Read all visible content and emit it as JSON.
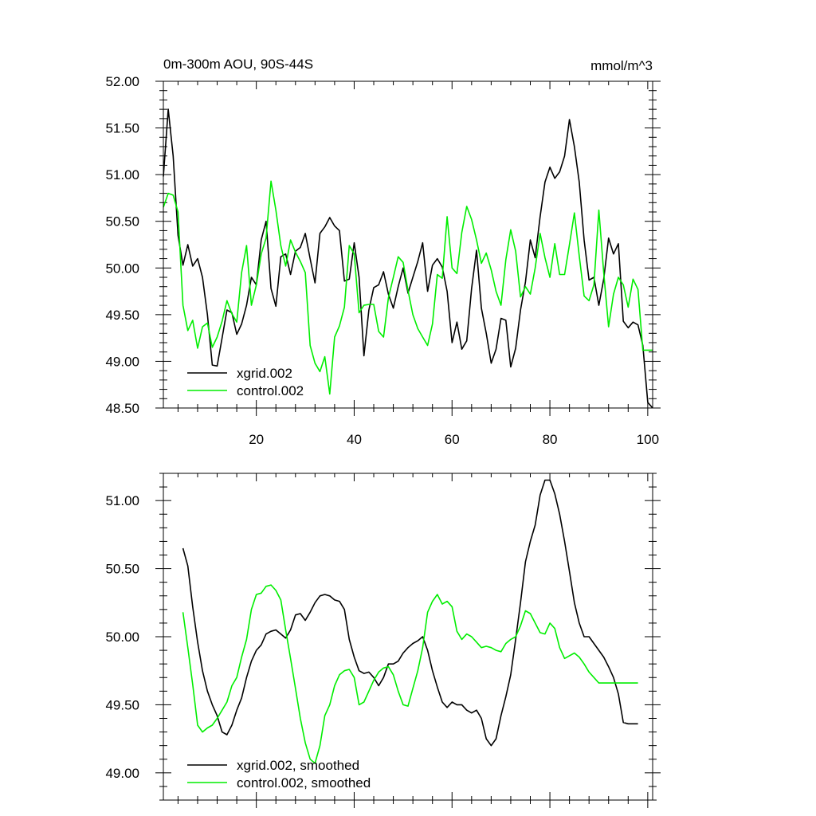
{
  "chart_data": [
    {
      "type": "line",
      "title": "0m-300m AOU, 90S-44S",
      "units_label": "mmol/m^3",
      "xlim": [
        1,
        101
      ],
      "ylim": [
        48.5,
        52.0
      ],
      "x_ticks": [
        20,
        40,
        60,
        80,
        100
      ],
      "x_tick_labels": [
        "20",
        "40",
        "60",
        "80",
        "100"
      ],
      "y_ticks": [
        48.5,
        49.0,
        49.5,
        50.0,
        50.5,
        51.0,
        51.5,
        52.0
      ],
      "y_tick_labels": [
        "48.50",
        "49.00",
        "49.50",
        "50.00",
        "50.50",
        "51.00",
        "51.50",
        "52.00"
      ],
      "legend_placement": "bottom-left",
      "series": [
        {
          "name": "xgrid.002",
          "color": "#000000",
          "x": [
            1,
            2,
            3,
            4,
            5,
            6,
            7,
            8,
            9,
            10,
            11,
            12,
            13,
            14,
            15,
            16,
            17,
            18,
            19,
            20,
            21,
            22,
            23,
            24,
            25,
            26,
            27,
            28,
            29,
            30,
            31,
            32,
            33,
            34,
            35,
            36,
            37,
            38,
            39,
            40,
            41,
            42,
            43,
            44,
            45,
            46,
            47,
            48,
            49,
            50,
            51,
            52,
            53,
            54,
            55,
            56,
            57,
            58,
            59,
            60,
            61,
            62,
            63,
            64,
            65,
            66,
            67,
            68,
            69,
            70,
            71,
            72,
            73,
            74,
            75,
            76,
            77,
            78,
            79,
            80,
            81,
            82,
            83,
            84,
            85,
            86,
            87,
            88,
            89,
            90,
            91,
            92,
            93,
            94,
            95,
            96,
            97,
            98,
            99,
            100,
            101
          ],
          "y": [
            50.98,
            51.7,
            51.2,
            50.35,
            50.03,
            50.25,
            50.02,
            50.1,
            49.9,
            49.5,
            48.96,
            48.95,
            49.25,
            49.55,
            49.52,
            49.29,
            49.4,
            49.6,
            49.9,
            49.82,
            50.3,
            50.5,
            49.78,
            49.59,
            50.12,
            50.15,
            49.93,
            50.18,
            50.22,
            50.37,
            50.1,
            49.84,
            50.37,
            50.44,
            50.54,
            50.45,
            50.4,
            49.86,
            49.88,
            50.27,
            49.9,
            49.06,
            49.55,
            49.79,
            49.82,
            49.96,
            49.72,
            49.57,
            49.8,
            50.0,
            49.73,
            49.9,
            50.07,
            50.27,
            49.75,
            50.03,
            50.1,
            50.01,
            49.75,
            49.2,
            49.42,
            49.13,
            49.22,
            49.78,
            50.19,
            49.57,
            49.3,
            48.98,
            49.13,
            49.46,
            49.44,
            48.94,
            49.14,
            49.55,
            49.85,
            50.3,
            50.11,
            50.55,
            50.92,
            51.08,
            50.96,
            51.03,
            51.2,
            51.59,
            51.3,
            50.92,
            50.3,
            49.87,
            49.9,
            49.6,
            49.88,
            50.32,
            50.15,
            50.26,
            49.43,
            49.36,
            49.42,
            49.39,
            49.17,
            48.56,
            48.5
          ]
        },
        {
          "name": "control.002",
          "color": "#00ee00",
          "x": [
            1,
            2,
            3,
            4,
            5,
            6,
            7,
            8,
            9,
            10,
            11,
            12,
            13,
            14,
            15,
            16,
            17,
            18,
            19,
            20,
            21,
            22,
            23,
            24,
            25,
            26,
            27,
            28,
            29,
            30,
            31,
            32,
            33,
            34,
            35,
            36,
            37,
            38,
            39,
            40,
            41,
            42,
            43,
            44,
            45,
            46,
            47,
            48,
            49,
            50,
            51,
            52,
            53,
            54,
            55,
            56,
            57,
            58,
            59,
            60,
            61,
            62,
            63,
            64,
            65,
            66,
            67,
            68,
            69,
            70,
            71,
            72,
            73,
            74,
            75,
            76,
            77,
            78,
            79,
            80,
            81,
            82,
            83,
            84,
            85,
            86,
            87,
            88,
            89,
            90,
            91,
            92,
            93,
            94,
            95,
            96,
            97,
            98,
            99,
            100,
            101
          ],
          "y": [
            50.65,
            50.8,
            50.78,
            50.6,
            49.6,
            49.33,
            49.44,
            49.14,
            49.37,
            49.41,
            49.15,
            49.26,
            49.43,
            49.65,
            49.51,
            49.42,
            49.95,
            50.24,
            49.6,
            49.82,
            50.15,
            50.32,
            50.93,
            50.62,
            50.24,
            50.02,
            50.3,
            50.17,
            50.07,
            49.95,
            49.17,
            48.98,
            48.89,
            49.05,
            48.65,
            49.26,
            49.38,
            49.58,
            50.24,
            50.15,
            49.52,
            49.6,
            49.61,
            49.61,
            49.32,
            49.26,
            49.68,
            49.9,
            50.12,
            50.06,
            49.76,
            49.5,
            49.35,
            49.26,
            49.17,
            49.4,
            49.93,
            49.89,
            50.55,
            50.0,
            49.94,
            50.38,
            50.66,
            50.52,
            50.3,
            50.05,
            50.16,
            49.98,
            49.75,
            49.6,
            50.09,
            50.41,
            50.18,
            49.69,
            49.8,
            49.72,
            50.0,
            50.37,
            50.11,
            49.9,
            50.26,
            49.93,
            49.93,
            50.25,
            50.59,
            50.13,
            49.7,
            49.65,
            49.82,
            50.62,
            49.95,
            49.37,
            49.72,
            49.9,
            49.82,
            49.58,
            49.88,
            49.77,
            49.12,
            49.12,
            49.12
          ]
        }
      ]
    },
    {
      "type": "line",
      "title": "",
      "xlim": [
        1,
        101
      ],
      "ylim": [
        48.8,
        51.2
      ],
      "x_ticks": [
        20,
        40,
        60,
        80,
        100
      ],
      "y_ticks": [
        49.0,
        49.5,
        50.0,
        50.5,
        51.0
      ],
      "y_tick_labels": [
        "49.00",
        "49.50",
        "50.00",
        "50.50",
        "51.00"
      ],
      "legend_placement": "bottom-left",
      "series": [
        {
          "name": "xgrid.002, smoothed",
          "color": "#000000",
          "x": [
            5,
            6,
            7,
            8,
            9,
            10,
            11,
            12,
            13,
            14,
            15,
            16,
            17,
            18,
            19,
            20,
            21,
            22,
            23,
            24,
            25,
            26,
            27,
            28,
            29,
            30,
            31,
            32,
            33,
            34,
            35,
            36,
            37,
            38,
            39,
            40,
            41,
            42,
            43,
            44,
            45,
            46,
            47,
            48,
            49,
            50,
            51,
            52,
            53,
            54,
            55,
            56,
            57,
            58,
            59,
            60,
            61,
            62,
            63,
            64,
            65,
            66,
            67,
            68,
            69,
            70,
            71,
            72,
            73,
            74,
            75,
            76,
            77,
            78,
            79,
            80,
            81,
            82,
            83,
            84,
            85,
            86,
            87,
            88,
            89,
            90,
            91,
            92,
            93,
            94,
            95,
            96,
            97,
            98
          ],
          "y": [
            50.65,
            50.52,
            50.22,
            49.96,
            49.75,
            49.6,
            49.5,
            49.42,
            49.3,
            49.28,
            49.35,
            49.46,
            49.55,
            49.7,
            49.82,
            49.9,
            49.94,
            50.02,
            50.04,
            50.05,
            50.02,
            49.99,
            50.05,
            50.16,
            50.17,
            50.12,
            50.18,
            50.25,
            50.3,
            50.31,
            50.3,
            50.27,
            50.26,
            50.2,
            49.98,
            49.85,
            49.75,
            49.73,
            49.74,
            49.7,
            49.64,
            49.7,
            49.8,
            49.8,
            49.82,
            49.88,
            49.92,
            49.95,
            49.97,
            50.0,
            49.9,
            49.75,
            49.63,
            49.52,
            49.48,
            49.52,
            49.5,
            49.5,
            49.46,
            49.44,
            49.46,
            49.4,
            49.25,
            49.2,
            49.25,
            49.42,
            49.56,
            49.72,
            49.98,
            50.25,
            50.55,
            50.7,
            50.82,
            51.04,
            51.15,
            51.15,
            51.05,
            50.9,
            50.7,
            50.48,
            50.25,
            50.1,
            50.0,
            50.0,
            49.95,
            49.9,
            49.85,
            49.78,
            49.7,
            49.58,
            49.37,
            49.36,
            49.36,
            49.36
          ]
        },
        {
          "name": "control.002, smoothed",
          "color": "#00ee00",
          "x": [
            5,
            6,
            7,
            8,
            9,
            10,
            11,
            12,
            13,
            14,
            15,
            16,
            17,
            18,
            19,
            20,
            21,
            22,
            23,
            24,
            25,
            26,
            27,
            28,
            29,
            30,
            31,
            32,
            33,
            34,
            35,
            36,
            37,
            38,
            39,
            40,
            41,
            42,
            43,
            44,
            45,
            46,
            47,
            48,
            49,
            50,
            51,
            52,
            53,
            54,
            55,
            56,
            57,
            58,
            59,
            60,
            61,
            62,
            63,
            64,
            65,
            66,
            67,
            68,
            69,
            70,
            71,
            72,
            73,
            74,
            75,
            76,
            77,
            78,
            79,
            80,
            81,
            82,
            83,
            84,
            85,
            86,
            87,
            88,
            89,
            90,
            91,
            92,
            93,
            94,
            95,
            96,
            97,
            98
          ],
          "y": [
            50.18,
            49.92,
            49.65,
            49.35,
            49.3,
            49.33,
            49.35,
            49.4,
            49.46,
            49.52,
            49.64,
            49.7,
            49.85,
            49.98,
            50.2,
            50.31,
            50.32,
            50.37,
            50.38,
            50.34,
            50.27,
            50.05,
            49.84,
            49.62,
            49.4,
            49.22,
            49.1,
            49.07,
            49.2,
            49.42,
            49.5,
            49.64,
            49.72,
            49.75,
            49.76,
            49.7,
            49.5,
            49.52,
            49.6,
            49.68,
            49.74,
            49.77,
            49.78,
            49.72,
            49.6,
            49.5,
            49.49,
            49.62,
            49.75,
            49.92,
            50.18,
            50.26,
            50.31,
            50.24,
            50.26,
            50.22,
            50.04,
            49.98,
            50.02,
            50.0,
            49.96,
            49.92,
            49.93,
            49.92,
            49.9,
            49.89,
            49.95,
            49.98,
            50.0,
            50.08,
            50.19,
            50.17,
            50.1,
            50.03,
            50.02,
            50.1,
            50.06,
            49.92,
            49.84,
            49.86,
            49.88,
            49.85,
            49.8,
            49.74,
            49.7,
            49.66,
            49.66,
            49.66,
            49.66,
            49.66,
            49.66,
            49.66,
            49.66,
            49.66
          ]
        }
      ]
    }
  ]
}
